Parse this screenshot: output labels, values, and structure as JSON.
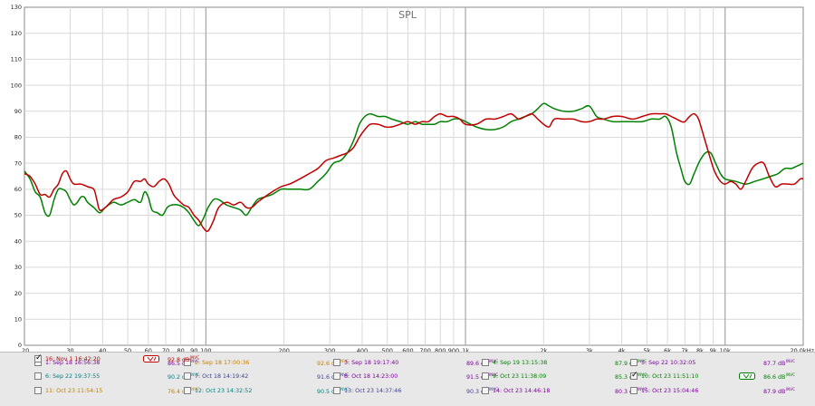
{
  "chart_data": {
    "type": "line",
    "title": "SPL",
    "x_scale": "log",
    "xlim": [
      20,
      20000
    ],
    "ylim": [
      0,
      130
    ],
    "grid": true,
    "x_tick_labels": [
      {
        "v": 20,
        "t": "20"
      },
      {
        "v": 30,
        "t": "30"
      },
      {
        "v": 40,
        "t": "40"
      },
      {
        "v": 50,
        "t": "50"
      },
      {
        "v": 60,
        "t": "60"
      },
      {
        "v": 70,
        "t": "70"
      },
      {
        "v": 80,
        "t": "80"
      },
      {
        "v": 90,
        "t": "90"
      },
      {
        "v": 100,
        "t": "100"
      },
      {
        "v": 200,
        "t": "200"
      },
      {
        "v": 300,
        "t": "300"
      },
      {
        "v": 400,
        "t": "400"
      },
      {
        "v": 500,
        "t": "500"
      },
      {
        "v": 600,
        "t": "600"
      },
      {
        "v": 700,
        "t": "700"
      },
      {
        "v": 800,
        "t": "800"
      },
      {
        "v": 900,
        "t": "900"
      },
      {
        "v": 1000,
        "t": "1k"
      },
      {
        "v": 2000,
        "t": "2k"
      },
      {
        "v": 3000,
        "t": "3k"
      },
      {
        "v": 4000,
        "t": "4k"
      },
      {
        "v": 5000,
        "t": "5k"
      },
      {
        "v": 6000,
        "t": "6k"
      },
      {
        "v": 7000,
        "t": "7k"
      },
      {
        "v": 8000,
        "t": "8k"
      },
      {
        "v": 9000,
        "t": "9k"
      },
      {
        "v": 10000,
        "t": "10k"
      },
      {
        "v": 20000,
        "t": "20.0kHz"
      }
    ],
    "y_tick_labels": [
      "0",
      "10",
      "20",
      "30",
      "40",
      "50",
      "60",
      "70",
      "80",
      "90",
      "100",
      "110",
      "120",
      "130"
    ],
    "series": [
      {
        "name": "10: Oct 23 11:51:10",
        "color": "#008000",
        "points": [
          [
            20,
            67
          ],
          [
            21,
            64
          ],
          [
            22,
            59
          ],
          [
            23,
            57
          ],
          [
            24,
            51
          ],
          [
            25,
            50
          ],
          [
            26,
            56
          ],
          [
            27,
            60
          ],
          [
            28,
            60
          ],
          [
            29,
            59
          ],
          [
            30,
            56
          ],
          [
            31,
            54
          ],
          [
            32,
            55
          ],
          [
            33,
            57
          ],
          [
            34,
            57
          ],
          [
            35,
            55
          ],
          [
            37,
            53
          ],
          [
            39,
            51
          ],
          [
            41,
            53
          ],
          [
            44,
            55
          ],
          [
            47,
            54
          ],
          [
            50,
            55
          ],
          [
            53,
            56
          ],
          [
            56,
            55
          ],
          [
            58,
            59
          ],
          [
            60,
            57
          ],
          [
            62,
            52
          ],
          [
            65,
            51
          ],
          [
            68,
            50
          ],
          [
            71,
            53
          ],
          [
            74,
            54
          ],
          [
            78,
            54
          ],
          [
            82,
            53
          ],
          [
            86,
            51
          ],
          [
            90,
            48
          ],
          [
            94,
            46
          ],
          [
            98,
            49
          ],
          [
            102,
            53
          ],
          [
            107,
            56
          ],
          [
            112,
            56
          ],
          [
            120,
            54
          ],
          [
            128,
            53
          ],
          [
            136,
            52
          ],
          [
            143,
            50
          ],
          [
            150,
            53
          ],
          [
            158,
            56
          ],
          [
            168,
            57
          ],
          [
            180,
            58
          ],
          [
            195,
            60
          ],
          [
            210,
            60
          ],
          [
            230,
            60
          ],
          [
            250,
            60
          ],
          [
            270,
            63
          ],
          [
            290,
            66
          ],
          [
            310,
            70
          ],
          [
            330,
            71
          ],
          [
            345,
            73
          ],
          [
            360,
            76
          ],
          [
            375,
            80
          ],
          [
            390,
            85
          ],
          [
            410,
            88
          ],
          [
            430,
            89
          ],
          [
            460,
            88
          ],
          [
            490,
            88
          ],
          [
            520,
            87
          ],
          [
            560,
            86
          ],
          [
            600,
            85
          ],
          [
            640,
            86
          ],
          [
            680,
            85
          ],
          [
            720,
            85
          ],
          [
            760,
            85
          ],
          [
            800,
            86
          ],
          [
            850,
            86
          ],
          [
            900,
            87
          ],
          [
            950,
            87
          ],
          [
            1000,
            86
          ],
          [
            1100,
            84
          ],
          [
            1200,
            83
          ],
          [
            1300,
            83
          ],
          [
            1400,
            84
          ],
          [
            1500,
            86
          ],
          [
            1600,
            87
          ],
          [
            1700,
            88
          ],
          [
            1800,
            89
          ],
          [
            1900,
            91
          ],
          [
            2000,
            93
          ],
          [
            2100,
            92
          ],
          [
            2200,
            91
          ],
          [
            2400,
            90
          ],
          [
            2600,
            90
          ],
          [
            2800,
            91
          ],
          [
            3000,
            92
          ],
          [
            3200,
            88
          ],
          [
            3400,
            87
          ],
          [
            3700,
            86
          ],
          [
            4000,
            86
          ],
          [
            4400,
            86
          ],
          [
            4800,
            86
          ],
          [
            5200,
            87
          ],
          [
            5600,
            87
          ],
          [
            5900,
            88
          ],
          [
            6200,
            84
          ],
          [
            6500,
            74
          ],
          [
            6800,
            67
          ],
          [
            7000,
            63
          ],
          [
            7300,
            62
          ],
          [
            7600,
            66
          ],
          [
            8000,
            71
          ],
          [
            8400,
            74
          ],
          [
            8800,
            74
          ],
          [
            9200,
            70
          ],
          [
            9600,
            66
          ],
          [
            10000,
            64
          ],
          [
            11000,
            63
          ],
          [
            12000,
            62
          ],
          [
            13000,
            63
          ],
          [
            14000,
            64
          ],
          [
            15000,
            65
          ],
          [
            16000,
            66
          ],
          [
            17000,
            68
          ],
          [
            18000,
            68
          ],
          [
            19000,
            69
          ],
          [
            20000,
            70
          ]
        ]
      },
      {
        "name": "16: Nov 1 16:42:20",
        "color": "#c00000",
        "points": [
          [
            20,
            66
          ],
          [
            21,
            65
          ],
          [
            22,
            62
          ],
          [
            23,
            58
          ],
          [
            24,
            58
          ],
          [
            25,
            57
          ],
          [
            26,
            60
          ],
          [
            27,
            62
          ],
          [
            28,
            66
          ],
          [
            29,
            67
          ],
          [
            30,
            64
          ],
          [
            31,
            62
          ],
          [
            33,
            62
          ],
          [
            35,
            61
          ],
          [
            37,
            60
          ],
          [
            38,
            56
          ],
          [
            39,
            52
          ],
          [
            41,
            53
          ],
          [
            44,
            56
          ],
          [
            47,
            57
          ],
          [
            50,
            59
          ],
          [
            53,
            63
          ],
          [
            56,
            63
          ],
          [
            58,
            64
          ],
          [
            60,
            62
          ],
          [
            63,
            61
          ],
          [
            66,
            63
          ],
          [
            69,
            64
          ],
          [
            72,
            62
          ],
          [
            75,
            58
          ],
          [
            78,
            56
          ],
          [
            82,
            54
          ],
          [
            86,
            53
          ],
          [
            90,
            50
          ],
          [
            94,
            48
          ],
          [
            98,
            45
          ],
          [
            102,
            44
          ],
          [
            107,
            48
          ],
          [
            112,
            53
          ],
          [
            120,
            55
          ],
          [
            128,
            54
          ],
          [
            136,
            55
          ],
          [
            143,
            53
          ],
          [
            150,
            53
          ],
          [
            158,
            55
          ],
          [
            168,
            57
          ],
          [
            180,
            59
          ],
          [
            195,
            61
          ],
          [
            210,
            62
          ],
          [
            230,
            64
          ],
          [
            250,
            66
          ],
          [
            270,
            68
          ],
          [
            290,
            71
          ],
          [
            310,
            72
          ],
          [
            330,
            73
          ],
          [
            350,
            74
          ],
          [
            370,
            76
          ],
          [
            390,
            80
          ],
          [
            410,
            83
          ],
          [
            430,
            85
          ],
          [
            460,
            85
          ],
          [
            490,
            84
          ],
          [
            520,
            84
          ],
          [
            560,
            85
          ],
          [
            600,
            86
          ],
          [
            640,
            85
          ],
          [
            680,
            86
          ],
          [
            720,
            86
          ],
          [
            760,
            88
          ],
          [
            800,
            89
          ],
          [
            850,
            88
          ],
          [
            900,
            88
          ],
          [
            950,
            87
          ],
          [
            1000,
            85
          ],
          [
            1100,
            85
          ],
          [
            1200,
            87
          ],
          [
            1300,
            87
          ],
          [
            1400,
            88
          ],
          [
            1500,
            89
          ],
          [
            1600,
            87
          ],
          [
            1700,
            88
          ],
          [
            1800,
            89
          ],
          [
            1900,
            87
          ],
          [
            2000,
            85
          ],
          [
            2100,
            84
          ],
          [
            2200,
            87
          ],
          [
            2400,
            87
          ],
          [
            2600,
            87
          ],
          [
            2800,
            86
          ],
          [
            3000,
            86
          ],
          [
            3200,
            87
          ],
          [
            3400,
            87
          ],
          [
            3700,
            88
          ],
          [
            4000,
            88
          ],
          [
            4400,
            87
          ],
          [
            4800,
            88
          ],
          [
            5200,
            89
          ],
          [
            5600,
            89
          ],
          [
            5900,
            89
          ],
          [
            6200,
            88
          ],
          [
            6500,
            87
          ],
          [
            6800,
            86
          ],
          [
            7000,
            86
          ],
          [
            7300,
            88
          ],
          [
            7600,
            89
          ],
          [
            7900,
            87
          ],
          [
            8300,
            80
          ],
          [
            8700,
            73
          ],
          [
            9100,
            67
          ],
          [
            9600,
            63
          ],
          [
            10000,
            62
          ],
          [
            10500,
            63
          ],
          [
            11000,
            62
          ],
          [
            11500,
            60
          ],
          [
            12000,
            63
          ],
          [
            12700,
            68
          ],
          [
            13400,
            70
          ],
          [
            14100,
            70
          ],
          [
            14800,
            65
          ],
          [
            15600,
            61
          ],
          [
            16500,
            62
          ],
          [
            17500,
            62
          ],
          [
            18500,
            62
          ],
          [
            19500,
            64
          ],
          [
            20000,
            64
          ]
        ]
      }
    ]
  },
  "legend": {
    "entries": [
      {
        "label": "1: Sep 18 16:56:38",
        "value": "86.5 dB",
        "sup": "INVC",
        "color": "#8000a0",
        "checked": false,
        "badge": false
      },
      {
        "label": "2: Sep 18 17:00:36",
        "value": "92.6 dB",
        "sup": "INVC",
        "color": "#c08000",
        "checked": false,
        "badge": false
      },
      {
        "label": "3: Sep 18 19:17:40",
        "value": "89.6 dB",
        "sup": "INVC",
        "color": "#8000a0",
        "checked": false,
        "badge": false
      },
      {
        "label": "4: Sep 19 13:15:38",
        "value": "87.9 dB",
        "sup": "INVC",
        "color": "#008000",
        "checked": false,
        "badge": false
      },
      {
        "label": "5: Sep 22 10:32:05",
        "value": "87.7 dB",
        "sup": "INVC",
        "color": "#8000a0",
        "checked": false,
        "badge": false
      },
      {
        "label": "6: Sep 22 19:37:55",
        "value": "90.2 dB",
        "sup": "INVC",
        "color": "#008080",
        "checked": false,
        "badge": false
      },
      {
        "label": "7: Oct 18 14:19:42",
        "value": "91.6 dB",
        "sup": "INVC",
        "color": "#404090",
        "checked": false,
        "badge": false
      },
      {
        "label": "8: Oct 18 14:23:00",
        "value": "91.5 dB",
        "sup": "INVC",
        "color": "#8000a0",
        "checked": false,
        "badge": false
      },
      {
        "label": "9: Oct 23 11:38:09",
        "value": "85.3 dB",
        "sup": "INVC",
        "color": "#008000",
        "checked": false,
        "badge": false
      },
      {
        "label": "10: Oct 23 11:51:10",
        "value": "86.6 dB",
        "sup": "INVC",
        "color": "#008000",
        "checked": true,
        "badge": true
      },
      {
        "label": "11: Oct 23 11:54:15",
        "value": "76.4 dB",
        "sup": "INVC",
        "color": "#c08000",
        "checked": false,
        "badge": false
      },
      {
        "label": "12: Oct 23 14:32:52",
        "value": "90.5 dB",
        "sup": "INVC",
        "color": "#008080",
        "checked": false,
        "badge": false
      },
      {
        "label": "13: Oct 23 14:37:46",
        "value": "90.3 dB",
        "sup": "INVC",
        "color": "#404090",
        "checked": false,
        "badge": false
      },
      {
        "label": "14: Oct 23 14:46:18",
        "value": "80.3 dB",
        "sup": "INVC",
        "color": "#8000a0",
        "checked": false,
        "badge": false
      },
      {
        "label": "15: Oct 23 15:04:46",
        "value": "87.9 dB",
        "sup": "INVC",
        "color": "#8000a0",
        "checked": false,
        "badge": false
      },
      {
        "label": "16: Nov 1 16:42:20",
        "value": "92.8 dB",
        "sup": "INVC",
        "color": "#c00000",
        "checked": true,
        "badge": true
      }
    ]
  }
}
